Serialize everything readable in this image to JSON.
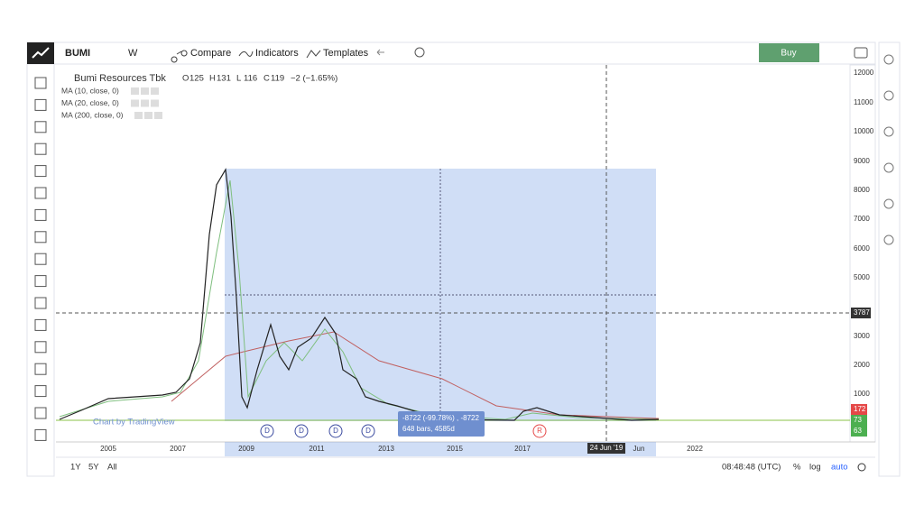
{
  "toolbar": {
    "symbol": "BUMI",
    "interval": "W",
    "compare": "Compare",
    "indicators": "Indicators",
    "templates": "Templates",
    "buy": "Buy"
  },
  "legend": {
    "name": "Bumi Resources Tbk",
    "ohlc": [
      {
        "key": "O",
        "value": "125"
      },
      {
        "key": "H",
        "value": "131"
      },
      {
        "key": "L",
        "value": "116"
      },
      {
        "key": "C",
        "value": "119"
      }
    ],
    "change": "−2 (−1.65%)"
  },
  "indicators": [
    "MA (10, close, 0)",
    "MA (20, close, 0)",
    "MA (200, close, 0)"
  ],
  "price_axis": {
    "ticks": [
      "12000",
      "11000",
      "10000",
      "9000",
      "8000",
      "7000",
      "6000",
      "5000",
      "3000",
      "2000",
      "1000"
    ],
    "crosshair_price": "3787",
    "last_prices": [
      "172",
      "73",
      "63"
    ]
  },
  "time_axis": {
    "ticks": [
      "2005",
      "2007",
      "2009",
      "2011",
      "2013",
      "2015",
      "2017",
      "Jun",
      "2022"
    ],
    "crosshair_date": "24 Jun '19"
  },
  "events": [
    "D",
    "D",
    "D",
    "D",
    "R"
  ],
  "measure": {
    "change": "-8722 (-99.78%) , -8722",
    "span": "648 bars, 4585d"
  },
  "watermark": "Chart by TradingView",
  "bottom_bar": {
    "ranges": [
      "1Y",
      "5Y",
      "All"
    ],
    "clock": "08:48:48 (UTC)",
    "percent": "%",
    "log": "log",
    "auto": "auto"
  }
}
